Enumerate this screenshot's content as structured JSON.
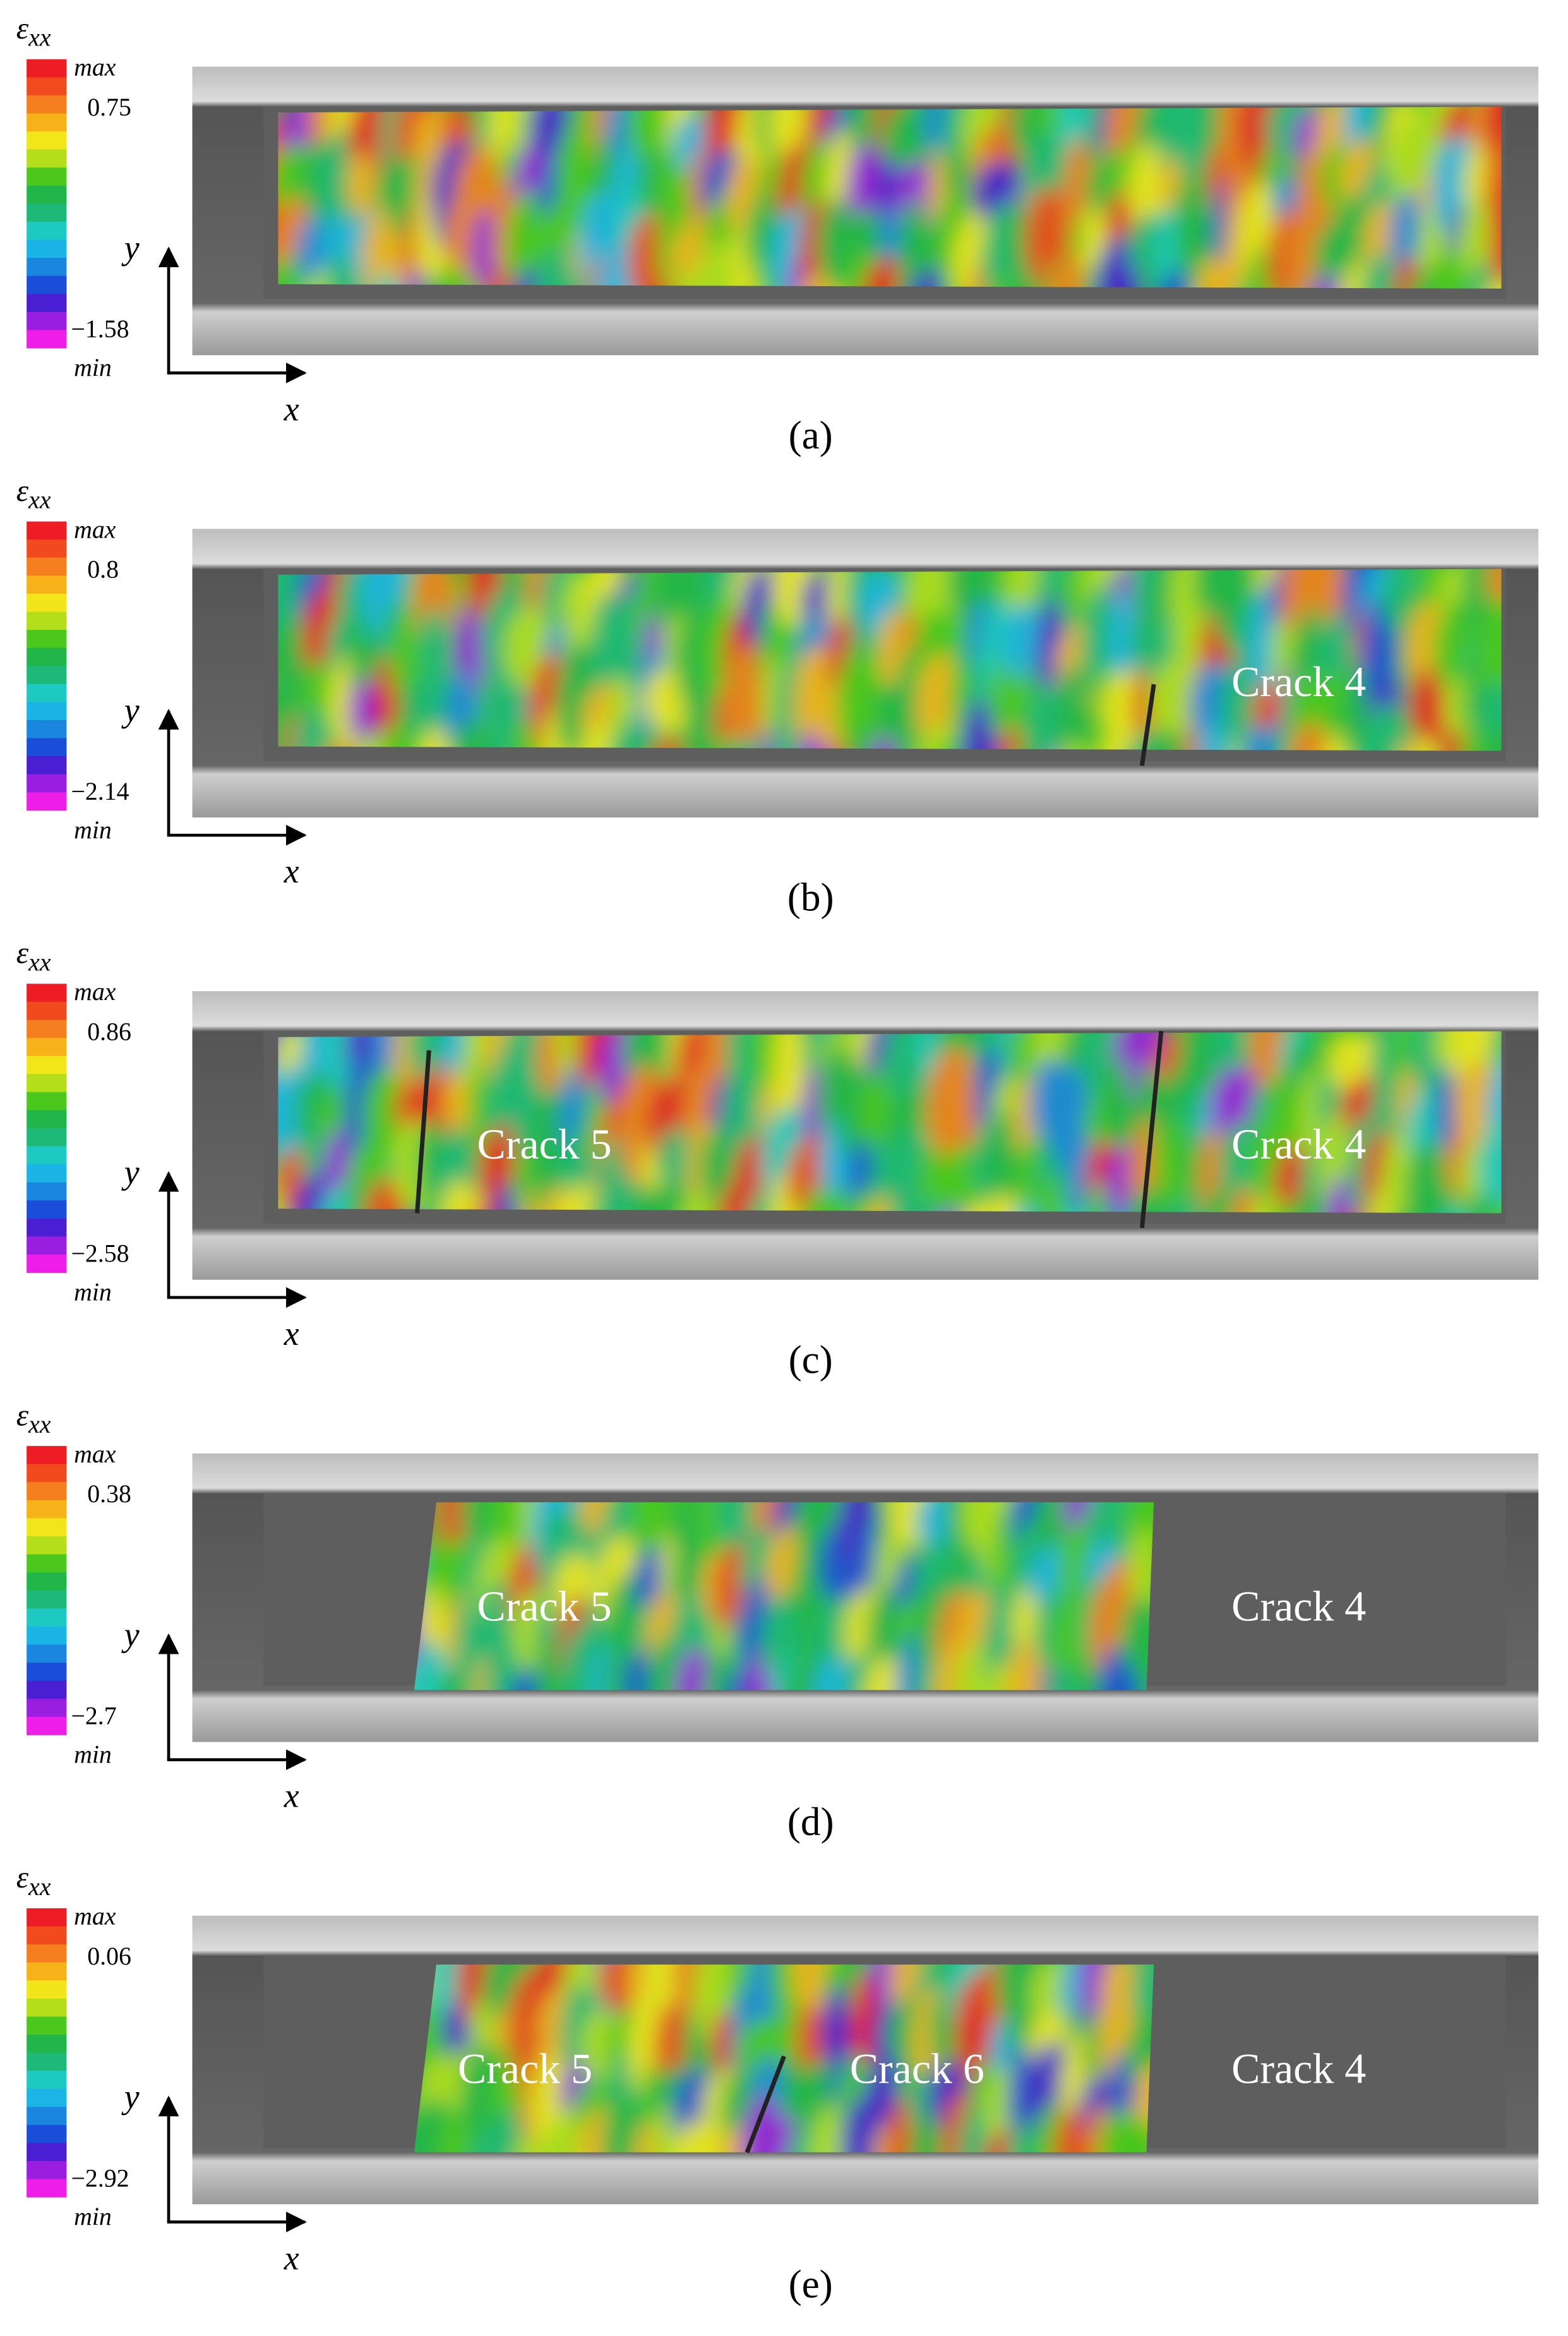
{
  "panels": [
    {
      "label": "(a)",
      "symbol": "ε",
      "subscript": "xx",
      "max_label": "max",
      "upper": "0.75",
      "lower": "−1.58",
      "min_label": "min",
      "y_axis": "y",
      "x_axis": "x",
      "cracks": []
    },
    {
      "label": "(b)",
      "symbol": "ε",
      "subscript": "xx",
      "max_label": "max",
      "upper": "0.8",
      "lower": "−2.14",
      "min_label": "min",
      "y_axis": "y",
      "x_axis": "x",
      "cracks": [
        "Crack 4"
      ]
    },
    {
      "label": "(c)",
      "symbol": "ε",
      "subscript": "xx",
      "max_label": "max",
      "upper": "0.86",
      "lower": "−2.58",
      "min_label": "min",
      "y_axis": "y",
      "x_axis": "x",
      "cracks": [
        "Crack 5",
        "Crack 4"
      ]
    },
    {
      "label": "(d)",
      "symbol": "ε",
      "subscript": "xx",
      "max_label": "max",
      "upper": "0.38",
      "lower": "−2.7",
      "min_label": "min",
      "y_axis": "y",
      "x_axis": "x",
      "cracks": [
        "Crack 5",
        "Crack 4"
      ]
    },
    {
      "label": "(e)",
      "symbol": "ε",
      "subscript": "xx",
      "max_label": "max",
      "upper": "0.06",
      "lower": "−2.92",
      "min_label": "min",
      "y_axis": "y",
      "x_axis": "x",
      "cracks": [
        "Crack 5",
        "Crack 6",
        "Crack 4"
      ]
    }
  ]
}
